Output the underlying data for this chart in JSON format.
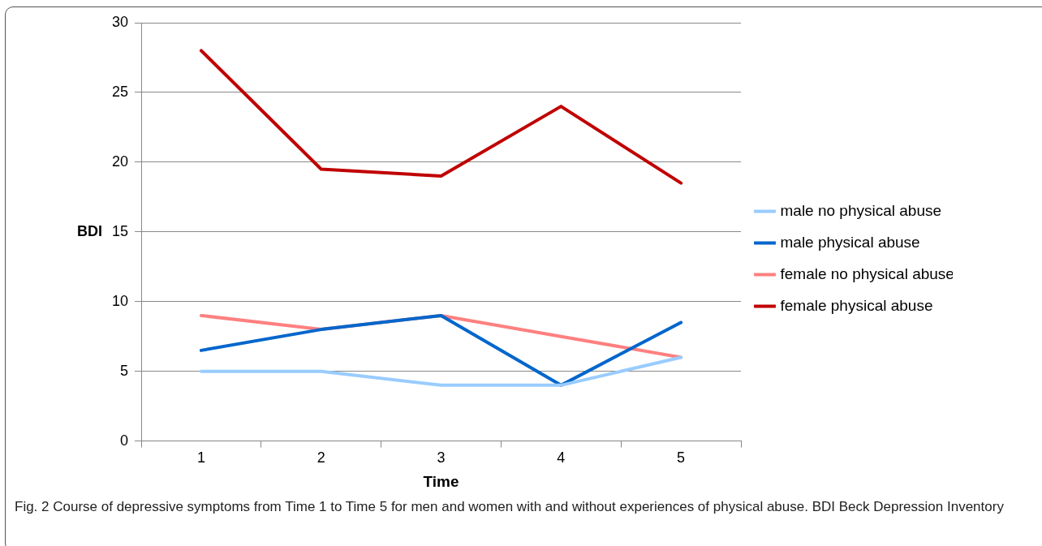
{
  "chart_data": {
    "type": "line",
    "categories": [
      "1",
      "2",
      "3",
      "4",
      "5"
    ],
    "xlabel": "Time",
    "ylabel": "BDI",
    "ylim": [
      0,
      30
    ],
    "yticks": [
      0,
      5,
      10,
      15,
      20,
      25,
      30
    ],
    "grid": "y",
    "legend": "right",
    "marker": "none",
    "line_style": "solid",
    "series": [
      {
        "name": "male no physical abuse",
        "color": "#99ccff",
        "values": [
          5,
          5,
          4,
          4,
          6
        ]
      },
      {
        "name": "male physical abuse",
        "color": "#0066cc",
        "values": [
          6.5,
          8,
          9,
          4,
          8.5
        ]
      },
      {
        "name": "female no physical abuse",
        "color": "#ff8080",
        "values": [
          9,
          8,
          9,
          7.5,
          6
        ]
      },
      {
        "name": "female physical abuse",
        "color": "#c00000",
        "values": [
          28,
          19.5,
          19,
          24,
          18.5
        ]
      }
    ],
    "annotations": [
      "Fig. 2  Course of depressive symptoms from Time 1 to Time 5 for men and women with and without experiences of physical abuse. BDI Beck Depression Inventory"
    ]
  }
}
